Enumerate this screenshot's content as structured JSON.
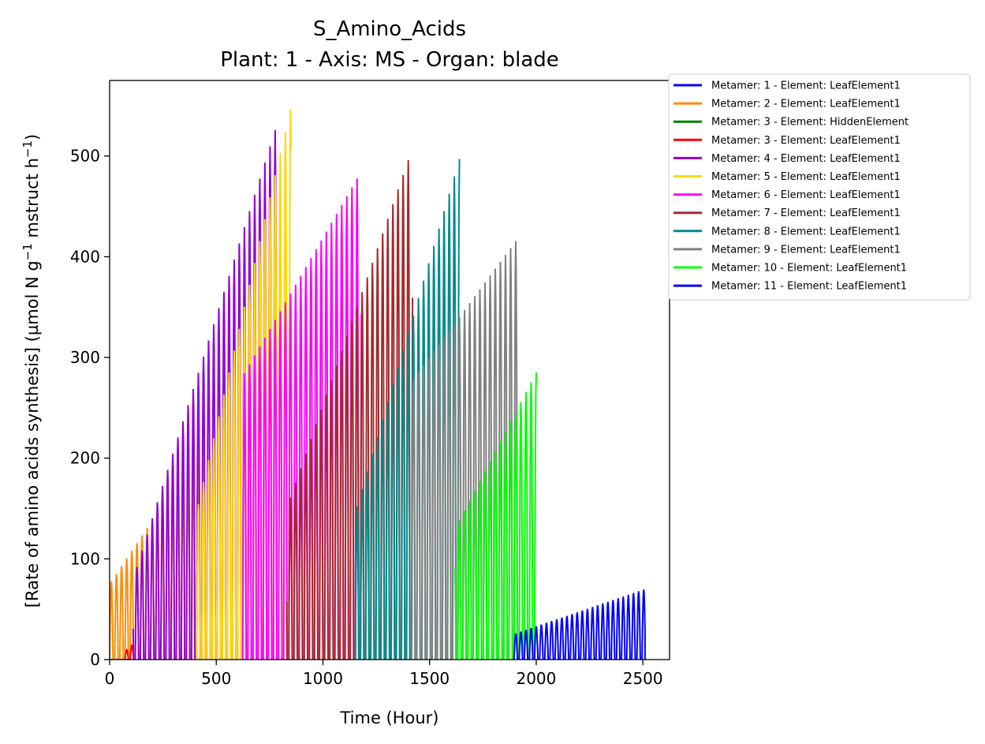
{
  "chart_data": {
    "type": "line",
    "title": "S_Amino_Acids",
    "subtitle": "Plant: 1 - Axis: MS - Organ: blade",
    "xlabel": "Time (Hour)",
    "ylabel_main": "[Rate of amino acids synthesis] (µmol N g",
    "ylabel_sup1": "−1",
    "ylabel_mid": " mstruct h",
    "ylabel_sup2": "−1",
    "ylabel_end": ")",
    "xlim": [
      0,
      2625
    ],
    "ylim": [
      0,
      575
    ],
    "xticks": [
      0,
      500,
      1000,
      1500,
      2000,
      2500
    ],
    "yticks": [
      0,
      100,
      200,
      300,
      400,
      500
    ],
    "legend_position": "outside-top-right",
    "grid": false,
    "series": [
      {
        "name": "Metamer: 1 - Element: LeafElement1",
        "color": "#0000ff",
        "start": 2,
        "end": 95,
        "first_peak": 0,
        "last_peak": 0,
        "zero_tail": false
      },
      {
        "name": "Metamer: 2 - Element: LeafElement1",
        "color": "#ff8c00",
        "start": 0,
        "end": 440,
        "first_peak": 75,
        "last_peak": 215,
        "zero_tail": false
      },
      {
        "name": "Metamer: 3 - Element: HiddenElement",
        "color": "#008000",
        "start": 0,
        "end": 0,
        "first_peak": 0,
        "last_peak": 0,
        "zero_tail": false
      },
      {
        "name": "Metamer: 3 - Element: LeafElement1",
        "color": "#ff0000",
        "start": 70,
        "end": 110,
        "first_peak": 8,
        "last_peak": 15,
        "zero_tail": false
      },
      {
        "name": "Metamer: 4 - Element: LeafElement1",
        "color": "#9400d3",
        "start": 110,
        "end": 790,
        "first_peak": 80,
        "last_peak": 535,
        "zero_tail": false
      },
      {
        "name": "Metamer: 5 - Element: LeafElement1",
        "color": "#ffd700",
        "start": 400,
        "end": 850,
        "first_peak": 140,
        "last_peak": 548,
        "zero_tail": false
      },
      {
        "name": "Metamer: 6 - Element: LeafElement1",
        "color": "#ff00ff",
        "start": 620,
        "end": 1180,
        "first_peak": 280,
        "last_peak": 485,
        "zero_tail": false
      },
      {
        "name": "Metamer: 7 - Element: LeafElement1",
        "color": "#a52a2a",
        "start": 830,
        "end": 1420,
        "first_peak": 150,
        "last_peak": 508,
        "zero_tail": false
      },
      {
        "name": "Metamer: 8 - Element: LeafElement1",
        "color": "#008b8b",
        "start": 1150,
        "end": 1640,
        "first_peak": 145,
        "last_peak": 497,
        "zero_tail": false
      },
      {
        "name": "Metamer: 9 - Element: LeafElement1",
        "color": "#808080",
        "start": 1410,
        "end": 1920,
        "first_peak": 275,
        "last_peak": 420,
        "zero_tail": false
      },
      {
        "name": "Metamer: 10 - Element: LeafElement1",
        "color": "#00ff00",
        "start": 1620,
        "end": 2000,
        "first_peak": 130,
        "last_peak": 285,
        "zero_tail": false
      },
      {
        "name": "Metamer: 11 - Element: LeafElement1",
        "color": "#0000ff",
        "start": 1890,
        "end": 2510,
        "first_peak": 25,
        "last_peak": 70,
        "zero_tail": true
      }
    ]
  }
}
